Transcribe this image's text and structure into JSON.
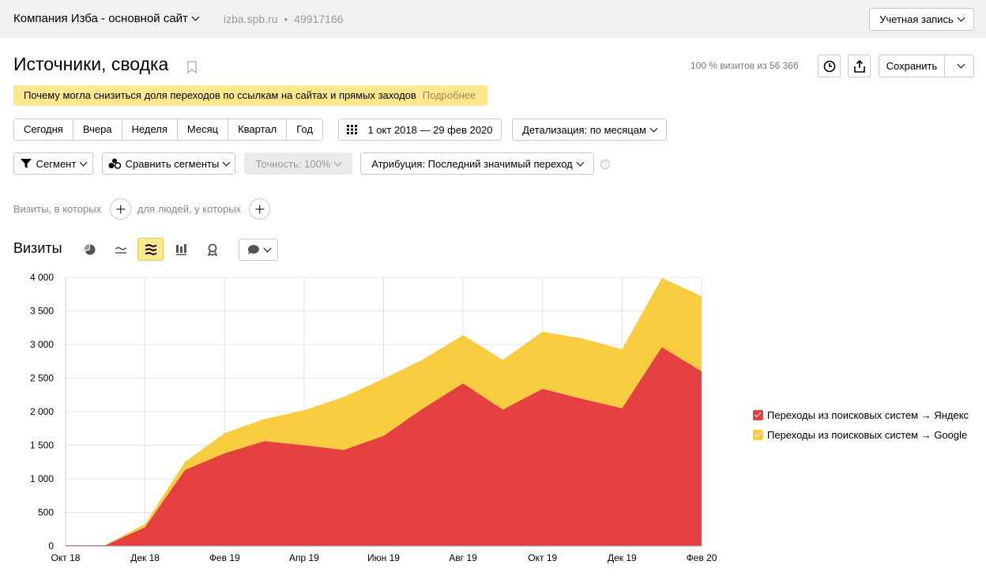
{
  "header": {
    "site_name": "Компания Изба - основной сайт",
    "site_domain": "izba.spb.ru",
    "site_sep": "•",
    "counter_id": "49917166",
    "account_label": "Учетная запись"
  },
  "page": {
    "title": "Источники, сводка",
    "visits_pct": "100 % визитов из 56 366",
    "save_label": "Сохранить"
  },
  "notice": {
    "text": "Почему могла снизиться доля переходов по ссылкам на сайтах и прямых заходов",
    "more": "Подробнее"
  },
  "periods": [
    "Сегодня",
    "Вчера",
    "Неделя",
    "Месяц",
    "Квартал",
    "Год"
  ],
  "date_range": "1 окт 2018 — 29 фев 2020",
  "detail_label": "Детализация: по месяцам",
  "filters": {
    "segment": "Сегмент",
    "compare": "Сравнить сегменты",
    "accuracy": "Точность: 100%",
    "attribution": "Атрибуция: Последний значимый переход",
    "help": "?",
    "visits_where": "Визиты, в которых",
    "people_where": "для людей, у которых"
  },
  "section_title": "Визиты",
  "icons": {
    "pie": "pie-chart-icon",
    "line": "line-chart-icon",
    "area": "stacked-area-icon",
    "bar": "bar-chart-icon",
    "map": "map-icon",
    "comment": "comment-icon"
  },
  "colors": {
    "yandex": "#e4403f",
    "google": "#f7cd3f",
    "grid": "#e3e3e3",
    "accent": "#fde88f"
  },
  "chart_data": {
    "type": "area",
    "stacked": true,
    "x": [
      "Окт 18",
      "Ноя 18",
      "Дек 18",
      "Янв 19",
      "Фев 19",
      "Мар 19",
      "Апр 19",
      "Май 19",
      "Июн 19",
      "Июл 19",
      "Авг 19",
      "Сен 19",
      "Окт 19",
      "Ноя 19",
      "Дек 19",
      "Янв 20",
      "Фев 20"
    ],
    "x_tick_labels": [
      "Окт 18",
      "Дек 18",
      "Фев 19",
      "Апр 19",
      "Июн 19",
      "Авг 19",
      "Окт 19",
      "Дек 19",
      "Фев 20"
    ],
    "y_ticks": [
      "0",
      "500",
      "1 000",
      "1 500",
      "2 000",
      "2 500",
      "3 000",
      "3 500",
      "4 000"
    ],
    "ylim": [
      0,
      4000
    ],
    "grid": true,
    "legend_position": "right",
    "series": [
      {
        "name": "Переходы из поисковых систем → Яндекс",
        "color": "#e4403f",
        "values": [
          10,
          10,
          280,
          1130,
          1380,
          1560,
          1500,
          1430,
          1640,
          2050,
          2420,
          2030,
          2340,
          2190,
          2050,
          2960,
          2600
        ]
      },
      {
        "name": "Переходы из поисковых систем → Google",
        "color": "#f7cd3f",
        "values": [
          0,
          0,
          50,
          120,
          300,
          330,
          520,
          790,
          850,
          730,
          720,
          740,
          850,
          900,
          880,
          1030,
          1120
        ]
      }
    ]
  }
}
